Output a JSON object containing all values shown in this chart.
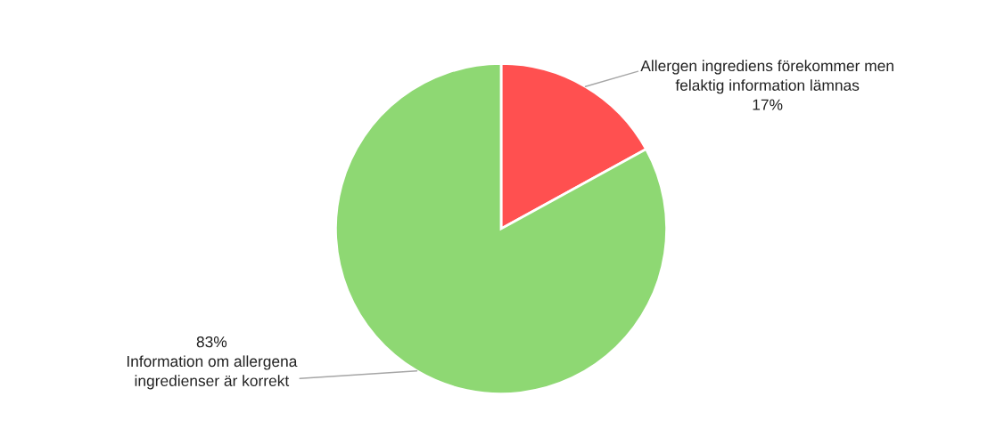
{
  "chart_data": {
    "type": "pie",
    "categories": [
      "Allergen ingrediens förekommer men felaktig information lämnas",
      "Information om allergena ingredienser är korrekt"
    ],
    "values": [
      17,
      83
    ],
    "value_labels": [
      "17%",
      "83%"
    ],
    "colors": [
      "#ff5050",
      "#8ed873"
    ],
    "legend": false
  }
}
